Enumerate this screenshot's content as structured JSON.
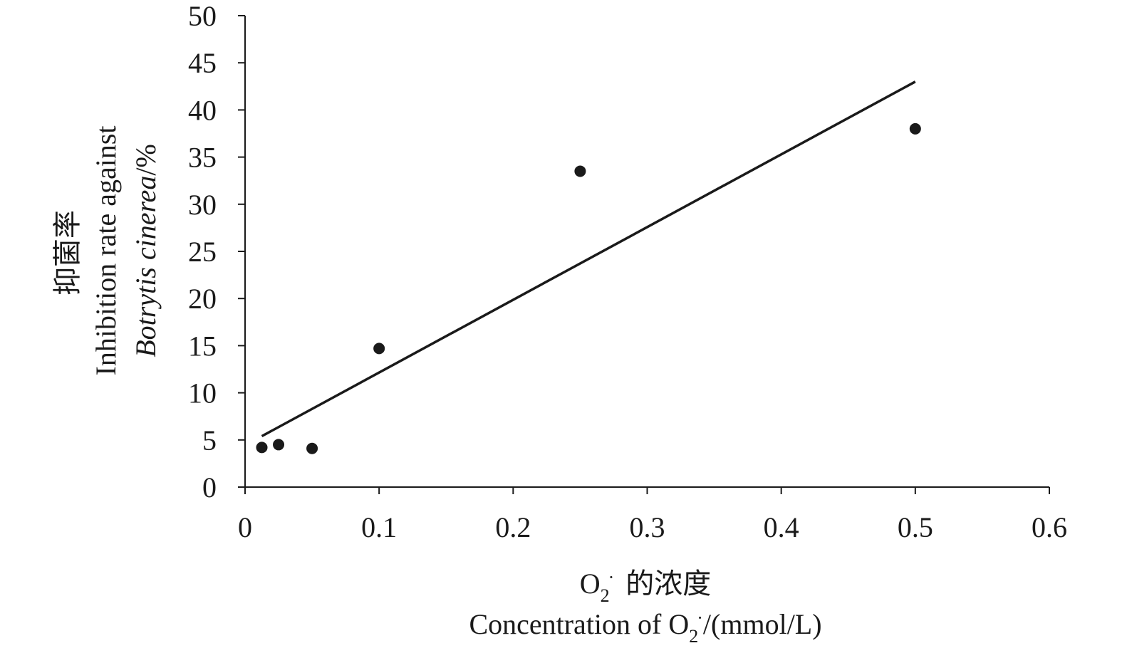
{
  "chart_data": {
    "type": "scatter",
    "x": [
      0.0125,
      0.025,
      0.05,
      0.1,
      0.25,
      0.5
    ],
    "y": [
      4.2,
      4.5,
      4.1,
      14.7,
      33.5,
      38.0
    ],
    "trendline": {
      "x": [
        0.0125,
        0.5
      ],
      "y": [
        5.4,
        43.0
      ]
    },
    "xlim": [
      0,
      0.6
    ],
    "ylim": [
      0,
      50
    ],
    "xticks": [
      0,
      0.1,
      0.2,
      0.3,
      0.4,
      0.5,
      0.6
    ],
    "xtick_labels": [
      "0",
      "0.1",
      "0.2",
      "0.3",
      "0.4",
      "0.5",
      "0.6"
    ],
    "yticks": [
      0,
      5,
      10,
      15,
      20,
      25,
      30,
      35,
      40,
      45,
      50
    ],
    "ytick_labels": [
      "0",
      "5",
      "10",
      "15",
      "20",
      "25",
      "30",
      "35",
      "40",
      "45",
      "50"
    ],
    "xlabel": {
      "line1_chemical": "O",
      "line1_subscript": "2",
      "line1_superscript": "·",
      "line1_cn": "的浓度",
      "line2_prefix": "Concentration of O",
      "line2_subscript": "2",
      "line2_superscript": "·",
      "line2_suffix": "/(mmol/L)"
    },
    "ylabel": {
      "line1_cn": "抑菌率",
      "line2": "Inhibition rate against",
      "line3_italic": "Botrytis cinerea",
      "line3_suffix": "/%"
    },
    "grid": false,
    "legend": "none"
  }
}
